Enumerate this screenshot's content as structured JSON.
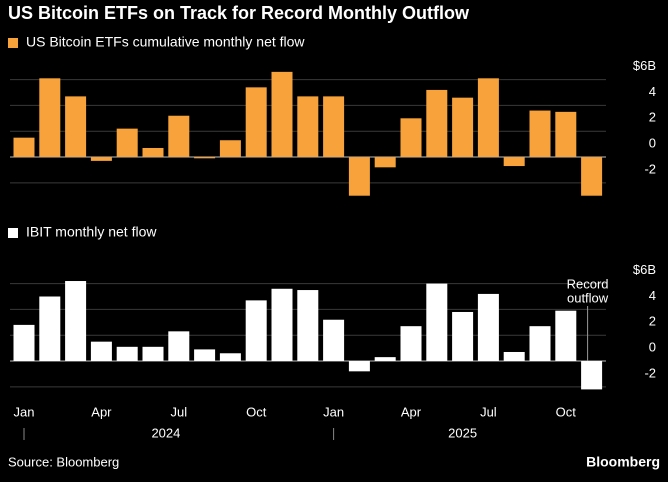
{
  "title": "US Bitcoin ETFs on Track for Record Monthly Outflow",
  "source": "Source: Bloomberg",
  "brand": "Bloomberg",
  "chart_data": [
    {
      "type": "bar",
      "series": [
        {
          "name": "US Bitcoin ETFs cumulative monthly net flow",
          "color": "#f7a23b",
          "values": [
            1.5,
            6.1,
            4.7,
            -0.3,
            2.2,
            0.7,
            3.2,
            -0.1,
            1.3,
            5.4,
            6.6,
            4.7,
            4.7,
            -3.0,
            -0.8,
            3.0,
            5.2,
            4.6,
            6.1,
            -0.7,
            3.6,
            3.5,
            -3.0
          ]
        }
      ],
      "ylim": [
        -3.2,
        7
      ],
      "yticks": [
        {
          "value": 6,
          "label": "$6B"
        },
        4,
        2,
        0,
        -2
      ],
      "grid": true
    },
    {
      "type": "bar",
      "series": [
        {
          "name": "IBIT monthly net flow",
          "color": "#ffffff",
          "values": [
            2.8,
            5.0,
            6.2,
            1.5,
            1.1,
            1.1,
            2.3,
            0.9,
            0.6,
            4.7,
            5.6,
            5.5,
            3.2,
            -0.8,
            0.3,
            2.7,
            6.0,
            3.8,
            5.2,
            0.7,
            2.7,
            3.9,
            -2.2
          ]
        }
      ],
      "categories": [
        "Jan",
        null,
        null,
        "Apr",
        null,
        null,
        "Jul",
        null,
        null,
        "Oct",
        null,
        null,
        "Jan",
        null,
        null,
        "Apr",
        null,
        null,
        "Jul",
        null,
        null,
        "Oct",
        null
      ],
      "years": [
        "2024",
        "2025"
      ],
      "ylim": [
        -3.2,
        7
      ],
      "yticks": [
        {
          "value": 6,
          "label": "$6B"
        },
        4,
        2,
        0,
        -2
      ],
      "grid": true,
      "annotation_lines": [
        "Record",
        "outflow"
      ]
    }
  ]
}
